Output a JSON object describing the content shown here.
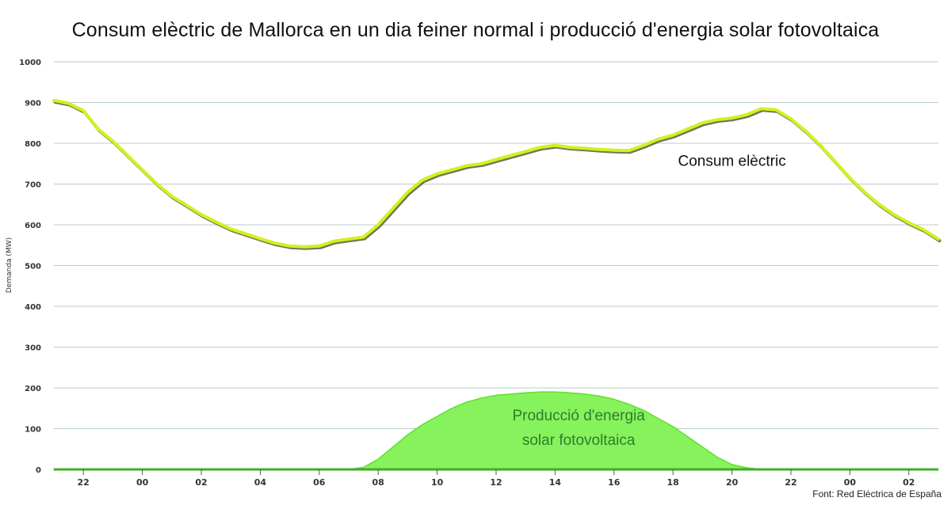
{
  "chart_data": {
    "type": "area",
    "title": "Consum elèctric de Mallorca en un dia feiner normal i producció d'energia solar fotovoltaica",
    "ylabel": "Demanda (MW)",
    "xlabel": "",
    "ylim": [
      0,
      1000
    ],
    "yticks": [
      0,
      100,
      200,
      300,
      400,
      500,
      600,
      700,
      800,
      900,
      1000
    ],
    "x_unit": "hours since 21:00 of the previous day (30 h span, 21:00 → 03:00)",
    "xlim": [
      0,
      30
    ],
    "xticks": [
      {
        "x": 1,
        "label": "22"
      },
      {
        "x": 3,
        "label": "00"
      },
      {
        "x": 5,
        "label": "02"
      },
      {
        "x": 7,
        "label": "04"
      },
      {
        "x": 9,
        "label": "06"
      },
      {
        "x": 11,
        "label": "08"
      },
      {
        "x": 13,
        "label": "10"
      },
      {
        "x": 15,
        "label": "12"
      },
      {
        "x": 17,
        "label": "14"
      },
      {
        "x": 19,
        "label": "16"
      },
      {
        "x": 21,
        "label": "18"
      },
      {
        "x": 23,
        "label": "20"
      },
      {
        "x": 25,
        "label": "22"
      },
      {
        "x": 27,
        "label": "00"
      },
      {
        "x": 29,
        "label": "02"
      }
    ],
    "grid": true,
    "legend": "none",
    "x": [
      0,
      0.5,
      1,
      1.5,
      2,
      2.5,
      3,
      3.5,
      4,
      4.5,
      5,
      5.5,
      6,
      6.5,
      7,
      7.5,
      8,
      8.5,
      9,
      9.5,
      10,
      10.5,
      11,
      11.5,
      12,
      12.5,
      13,
      13.5,
      14,
      14.5,
      15,
      15.5,
      16,
      16.5,
      17,
      17.5,
      18,
      18.5,
      19,
      19.5,
      20,
      20.5,
      21,
      21.5,
      22,
      22.5,
      23,
      23.5,
      24,
      24.5,
      25,
      25.5,
      26,
      26.5,
      27,
      27.5,
      28,
      28.5,
      29,
      29.5,
      30
    ],
    "series": [
      {
        "name": "Consum elèctric",
        "type": "line",
        "color": "#d4f01e",
        "values": [
          905,
          898,
          880,
          835,
          805,
          770,
          735,
          700,
          670,
          648,
          625,
          607,
          590,
          578,
          566,
          555,
          548,
          546,
          548,
          560,
          565,
          570,
          600,
          640,
          680,
          710,
          725,
          735,
          745,
          750,
          760,
          770,
          780,
          790,
          795,
          790,
          788,
          785,
          783,
          782,
          795,
          810,
          820,
          835,
          850,
          858,
          862,
          870,
          885,
          882,
          860,
          830,
          795,
          755,
          715,
          680,
          650,
          625,
          605,
          588,
          565
        ]
      },
      {
        "name": "Producció d'energia solar fotovoltaica",
        "type": "area",
        "color": "#86f25c",
        "values": [
          0,
          0,
          0,
          0,
          0,
          0,
          0,
          0,
          0,
          0,
          0,
          0,
          0,
          0,
          0,
          0,
          0,
          0,
          0,
          0,
          0,
          5,
          25,
          55,
          85,
          110,
          130,
          150,
          165,
          175,
          182,
          185,
          188,
          190,
          190,
          188,
          185,
          180,
          172,
          160,
          145,
          125,
          105,
          80,
          55,
          30,
          12,
          4,
          0,
          0,
          0,
          0,
          0,
          0,
          0,
          0,
          0,
          0,
          0,
          0,
          0
        ]
      }
    ],
    "annotations": [
      {
        "text": "Consum elèctric",
        "at": {
          "x": 23,
          "y": 745
        }
      },
      {
        "text": "Producció d'energia",
        "at": {
          "x": 17.8,
          "y": 120
        }
      },
      {
        "text": "solar fotovoltaica",
        "at": {
          "x": 17.8,
          "y": 60
        }
      }
    ],
    "source": "Font: Red Eléctrica de España"
  }
}
